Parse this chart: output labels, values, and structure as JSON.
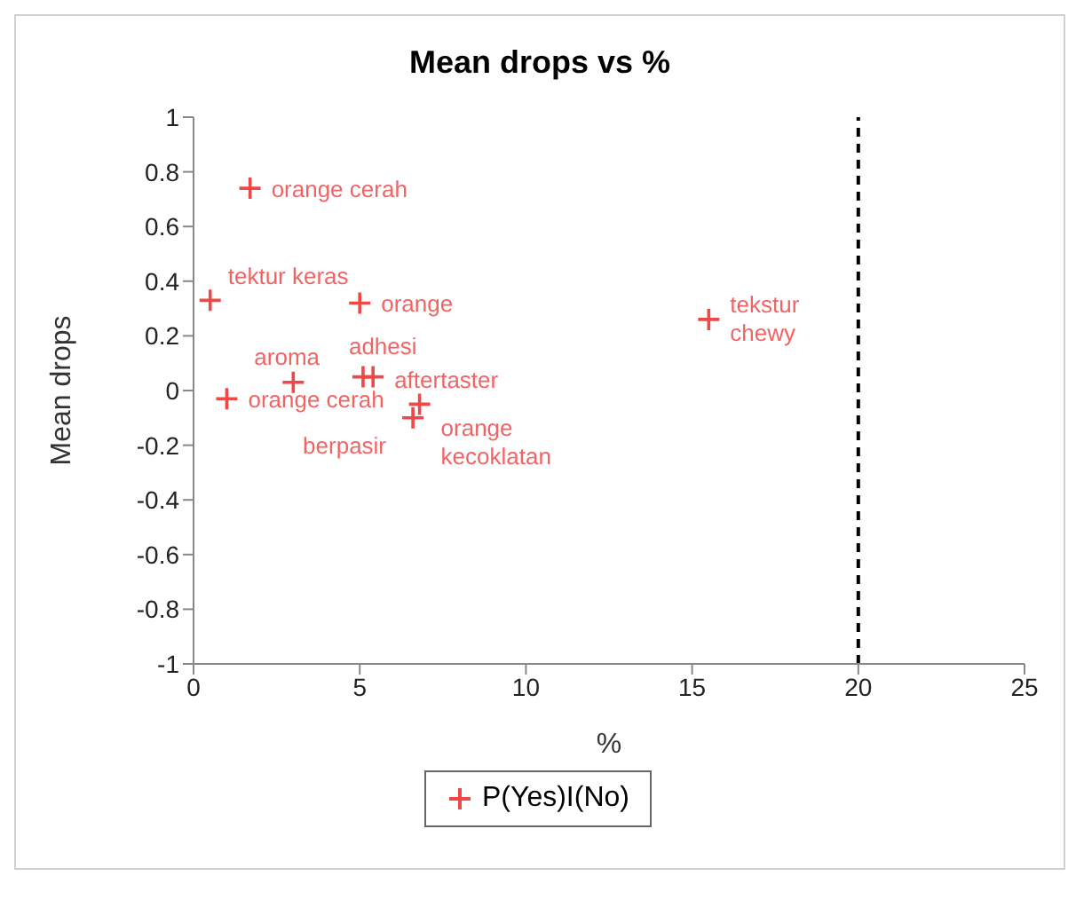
{
  "chart_data": {
    "type": "scatter",
    "title": "Mean drops vs %",
    "xlabel": "%",
    "ylabel": "Mean drops",
    "series": [
      {
        "name": "P(Yes)I(No)",
        "color": "#f04848",
        "x": [
          1.7,
          0.5,
          5.0,
          15.5,
          1.0,
          3.0,
          5.1,
          5.4,
          6.6,
          6.8
        ],
        "values": [
          0.74,
          0.33,
          0.32,
          0.26,
          -0.03,
          0.03,
          0.05,
          0.05,
          -0.1,
          -0.05
        ]
      }
    ],
    "annotations": [
      {
        "text": "orange cerah",
        "x": 1.7,
        "y": 0.74
      },
      {
        "text": "tektur keras",
        "x": 0.5,
        "y": 0.33
      },
      {
        "text": "orange",
        "x": 5.0,
        "y": 0.32
      },
      {
        "text": "tekstur\nchewy",
        "x": 15.5,
        "y": 0.26
      },
      {
        "text": "orange cerah",
        "x": 1.0,
        "y": -0.03
      },
      {
        "text": "aroma",
        "x": 3.0,
        "y": 0.03
      },
      {
        "text": "adhesi",
        "x": 5.1,
        "y": 0.05
      },
      {
        "text": "aftertaster",
        "x": 5.4,
        "y": 0.05
      },
      {
        "text": "berpasir",
        "x": 6.6,
        "y": -0.1
      },
      {
        "text": "orange\nkecoklatan",
        "x": 6.8,
        "y": -0.05
      }
    ],
    "xlim": [
      0,
      25
    ],
    "xticks": [
      0,
      5,
      10,
      15,
      20,
      25
    ],
    "ylim": [
      -1,
      1
    ],
    "yticks": [
      -1,
      -0.8,
      -0.6,
      -0.4,
      -0.2,
      0,
      0.2,
      0.4,
      0.6,
      0.8,
      1
    ],
    "ref_lines": [
      {
        "axis": "x",
        "value": 20,
        "color": "#000000",
        "line_style": "dashed"
      }
    ],
    "marker": "cross",
    "legend": "bottom",
    "grid": false
  }
}
